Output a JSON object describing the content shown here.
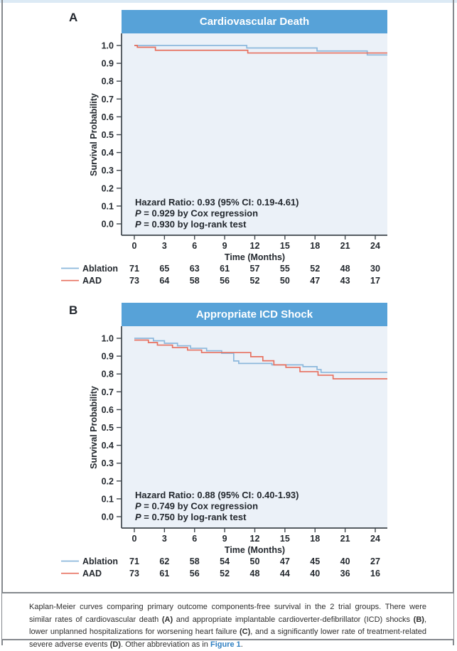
{
  "page": {
    "top_strip_color": "#dceaf5",
    "border_color": "#85898e",
    "background": "#ffffff"
  },
  "colors": {
    "header_bg": "#57a2d8",
    "plot_bg": "#ebf1f8",
    "ablation": "#8cb8dc",
    "aad": "#e7705f",
    "axis": "#3f464d",
    "text": "#23282e",
    "link": "#2f7fc1"
  },
  "chart_data": [
    {
      "type": "line",
      "km_step": true,
      "panel_label": "A",
      "title": "Cardiovascular Death",
      "xlabel": "Time (Months)",
      "ylabel": "Survival Probability",
      "xticks": [
        0,
        3,
        6,
        9,
        12,
        15,
        18,
        21,
        24
      ],
      "yticks": [
        1.0,
        0.9,
        0.8,
        0.7,
        0.6,
        0.5,
        0.4,
        0.3,
        0.2,
        0.1,
        0.0
      ],
      "xlim": [
        0,
        25.2
      ],
      "ylim": [
        0.0,
        1.0
      ],
      "legend_position": "bottom-left",
      "grid": false,
      "series": [
        {
          "name": "Ablation",
          "color_key": "ablation",
          "steps": [
            [
              0,
              1.0
            ],
            [
              11.2,
              0.986
            ],
            [
              18.2,
              0.969
            ],
            [
              23.2,
              0.947
            ]
          ]
        },
        {
          "name": "AAD",
          "color_key": "aad",
          "steps": [
            [
              0,
              1.0
            ],
            [
              0.3,
              0.99
            ],
            [
              2.1,
              0.973
            ],
            [
              11.3,
              0.958
            ]
          ]
        }
      ],
      "annotations": [
        "Hazard Ratio: 0.93 (95% CI: 0.19-4.61)",
        "P = 0.929 by Cox regression",
        "P = 0.930 by log-rank test"
      ],
      "risk_table": {
        "rows": [
          {
            "name": "Ablation",
            "values": [
              71,
              65,
              63,
              61,
              57,
              55,
              52,
              48,
              30
            ]
          },
          {
            "name": "AAD",
            "values": [
              73,
              64,
              58,
              56,
              52,
              50,
              47,
              43,
              17
            ]
          }
        ]
      }
    },
    {
      "type": "line",
      "km_step": true,
      "panel_label": "B",
      "title": "Appropriate ICD Shock",
      "xlabel": "Time (Months)",
      "ylabel": "Survival Probability",
      "xticks": [
        0,
        3,
        6,
        9,
        12,
        15,
        18,
        21,
        24
      ],
      "yticks": [
        1.0,
        0.9,
        0.8,
        0.7,
        0.6,
        0.5,
        0.4,
        0.3,
        0.2,
        0.1,
        0.0
      ],
      "xlim": [
        0,
        25.2
      ],
      "ylim": [
        0.0,
        1.0
      ],
      "legend_position": "bottom-left",
      "grid": false,
      "series": [
        {
          "name": "Ablation",
          "color_key": "ablation",
          "steps": [
            [
              0,
              1.0
            ],
            [
              1.9,
              0.986
            ],
            [
              3.0,
              0.972
            ],
            [
              4.3,
              0.958
            ],
            [
              5.6,
              0.944
            ],
            [
              7.2,
              0.93
            ],
            [
              8.7,
              0.916
            ],
            [
              9.9,
              0.873
            ],
            [
              10.4,
              0.859
            ],
            [
              13.7,
              0.851
            ],
            [
              16.8,
              0.841
            ],
            [
              18.2,
              0.825
            ],
            [
              18.6,
              0.809
            ]
          ]
        },
        {
          "name": "AAD",
          "color_key": "aad",
          "steps": [
            [
              0,
              0.99
            ],
            [
              1.4,
              0.976
            ],
            [
              2.3,
              0.962
            ],
            [
              3.8,
              0.948
            ],
            [
              5.3,
              0.934
            ],
            [
              6.7,
              0.92
            ],
            [
              11.6,
              0.897
            ],
            [
              12.8,
              0.874
            ],
            [
              13.9,
              0.851
            ],
            [
              15.1,
              0.837
            ],
            [
              16.5,
              0.813
            ],
            [
              18.3,
              0.793
            ],
            [
              19.8,
              0.773
            ]
          ]
        }
      ],
      "annotations": [
        "Hazard Ratio: 0.88 (95% CI: 0.40-1.93)",
        "P = 0.749 by Cox regression",
        "P = 0.750 by log-rank test"
      ],
      "risk_table": {
        "rows": [
          {
            "name": "Ablation",
            "values": [
              71,
              62,
              58,
              54,
              50,
              47,
              45,
              40,
              27
            ]
          },
          {
            "name": "AAD",
            "values": [
              73,
              61,
              56,
              52,
              48,
              44,
              40,
              36,
              16
            ]
          }
        ]
      }
    }
  ],
  "caption": {
    "segments": [
      {
        "t": "Kaplan-Meier curves comparing primary outcome components-free survival in the 2 trial groups. There were similar rates of cardiovascular death "
      },
      {
        "t": "(A)",
        "b": true
      },
      {
        "t": " and appropriate implantable cardioverter-defibrillator (ICD) shocks "
      },
      {
        "t": "(B)",
        "b": true
      },
      {
        "t": ", lower unplanned hospitalizations for worsening heart failure "
      },
      {
        "t": "(C)",
        "b": true
      },
      {
        "t": ", and a significantly lower rate of treatment-related severe adverse events "
      },
      {
        "t": "(D)",
        "b": true
      },
      {
        "t": ". Other abbreviation as in "
      },
      {
        "t": "Figure 1",
        "link": true
      },
      {
        "t": "."
      }
    ]
  }
}
